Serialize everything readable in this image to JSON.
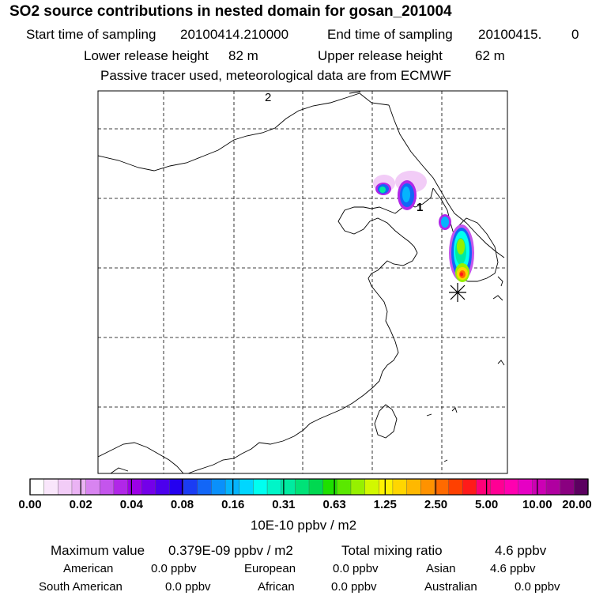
{
  "header": {
    "title": "SO2 source contributions in nested domain for gosan_201004",
    "start_label": "Start time of sampling",
    "start_value": "20100414.210000",
    "end_label": "End time of sampling",
    "end_value": "20100415.",
    "end_value_2": "0",
    "lower_label": "Lower release height",
    "lower_value": "82 m",
    "upper_label": "Upper release height",
    "upper_value": "62 m",
    "note": "Passive tracer used, meteorological data are from ECMWF"
  },
  "map": {
    "marker_2": "2",
    "marker_1": "1"
  },
  "colorbar": {
    "colors": [
      "#ffffff",
      "#f9e6fb",
      "#f2ccf7",
      "#ebb3f4",
      "#d884f0",
      "#c455ec",
      "#b127e8",
      "#9c00e6",
      "#7400e9",
      "#4c00ed",
      "#2400f0",
      "#1a3cf4",
      "#1266f7",
      "#0a90fb",
      "#05b4fd",
      "#00d6ff",
      "#00fff0",
      "#00f5c8",
      "#00eba0",
      "#00e278",
      "#00d850",
      "#1ee000",
      "#5ae800",
      "#96f000",
      "#d2f800",
      "#fff200",
      "#ffd600",
      "#ffb800",
      "#ff9200",
      "#ff6a00",
      "#ff4000",
      "#ff1a1a",
      "#ff0078",
      "#ff0094",
      "#ff00b0",
      "#e600c4",
      "#cc00b4",
      "#b000a0",
      "#8a0080",
      "#5c0060"
    ],
    "ticks": [
      "0.00",
      "0.02",
      "0.04",
      "0.08",
      "0.16",
      "0.31",
      "0.63",
      "1.25",
      "2.50",
      "5.00",
      "10.00",
      "20.00"
    ],
    "units": "10E-10 ppbv / m2"
  },
  "stats": {
    "max_label": "Maximum value",
    "max_value": "0.379E-09 ppbv / m2",
    "total_label": "Total mixing ratio",
    "total_value": "4.6 ppbv",
    "american_label": "American",
    "american_value": "0.0 ppbv",
    "european_label": "European",
    "european_value": "0.0 ppbv",
    "asian_label": "Asian",
    "asian_value": "4.6 ppbv",
    "south_american_label": "South American",
    "south_american_value": "0.0 ppbv",
    "african_label": "African",
    "african_value": "0.0 ppbv",
    "australian_label": "Australian",
    "australian_value": "0.0 ppbv"
  },
  "chart_data": {
    "type": "heatmap",
    "title": "SO2 source contributions in nested domain for gosan_201004",
    "colorbar_levels": [
      0.0,
      0.02,
      0.04,
      0.08,
      0.16,
      0.31,
      0.63,
      1.25,
      2.5,
      5.0,
      10.0,
      20.0
    ],
    "units": "10E-10 ppbv / m2",
    "max_value": "0.379E-09 ppbv / m2",
    "grid": true,
    "receptor": "gosan"
  }
}
